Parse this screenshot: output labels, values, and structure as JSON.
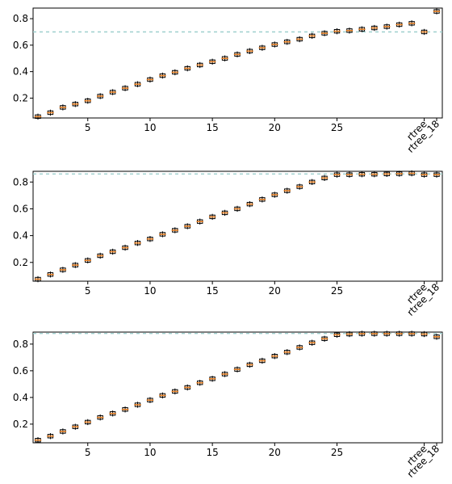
{
  "chart_data": [
    {
      "type": "box",
      "xtick_labels": [
        "5",
        "10",
        "15",
        "20",
        "25",
        "rtree",
        "rtree_18"
      ],
      "ytick_labels": [
        "0.2",
        "0.4",
        "0.6",
        "0.8"
      ],
      "ylim": [
        0.05,
        0.88
      ],
      "reference_line": 0.7,
      "medians": [
        0.06,
        0.09,
        0.13,
        0.155,
        0.18,
        0.215,
        0.245,
        0.275,
        0.305,
        0.34,
        0.37,
        0.395,
        0.425,
        0.45,
        0.475,
        0.5,
        0.53,
        0.555,
        0.58,
        0.605,
        0.625,
        0.645,
        0.67,
        0.69,
        0.705,
        0.71,
        0.72,
        0.73,
        0.74,
        0.755,
        0.765,
        0.7,
        0.855
      ]
    },
    {
      "type": "box",
      "xtick_labels": [
        "5",
        "10",
        "15",
        "20",
        "25",
        "rtree",
        "rtree_18"
      ],
      "ytick_labels": [
        "0.2",
        "0.4",
        "0.6",
        "0.8"
      ],
      "ylim": [
        0.06,
        0.88
      ],
      "reference_line": 0.86,
      "medians": [
        0.075,
        0.11,
        0.145,
        0.18,
        0.215,
        0.25,
        0.28,
        0.31,
        0.345,
        0.375,
        0.41,
        0.44,
        0.47,
        0.505,
        0.54,
        0.57,
        0.6,
        0.635,
        0.67,
        0.705,
        0.735,
        0.765,
        0.8,
        0.83,
        0.855,
        0.855,
        0.858,
        0.858,
        0.86,
        0.862,
        0.865,
        0.855,
        0.855
      ]
    },
    {
      "type": "box",
      "xtick_labels": [
        "5",
        "10",
        "15",
        "20",
        "25",
        "rtree",
        "rtree_18"
      ],
      "ytick_labels": [
        "0.2",
        "0.4",
        "0.6",
        "0.8"
      ],
      "ylim": [
        0.06,
        0.89
      ],
      "reference_line": 0.88,
      "medians": [
        0.08,
        0.11,
        0.145,
        0.18,
        0.215,
        0.25,
        0.28,
        0.31,
        0.345,
        0.38,
        0.415,
        0.445,
        0.475,
        0.51,
        0.54,
        0.575,
        0.61,
        0.645,
        0.675,
        0.71,
        0.74,
        0.775,
        0.81,
        0.84,
        0.87,
        0.875,
        0.878,
        0.878,
        0.878,
        0.878,
        0.878,
        0.875,
        0.855
      ]
    }
  ]
}
